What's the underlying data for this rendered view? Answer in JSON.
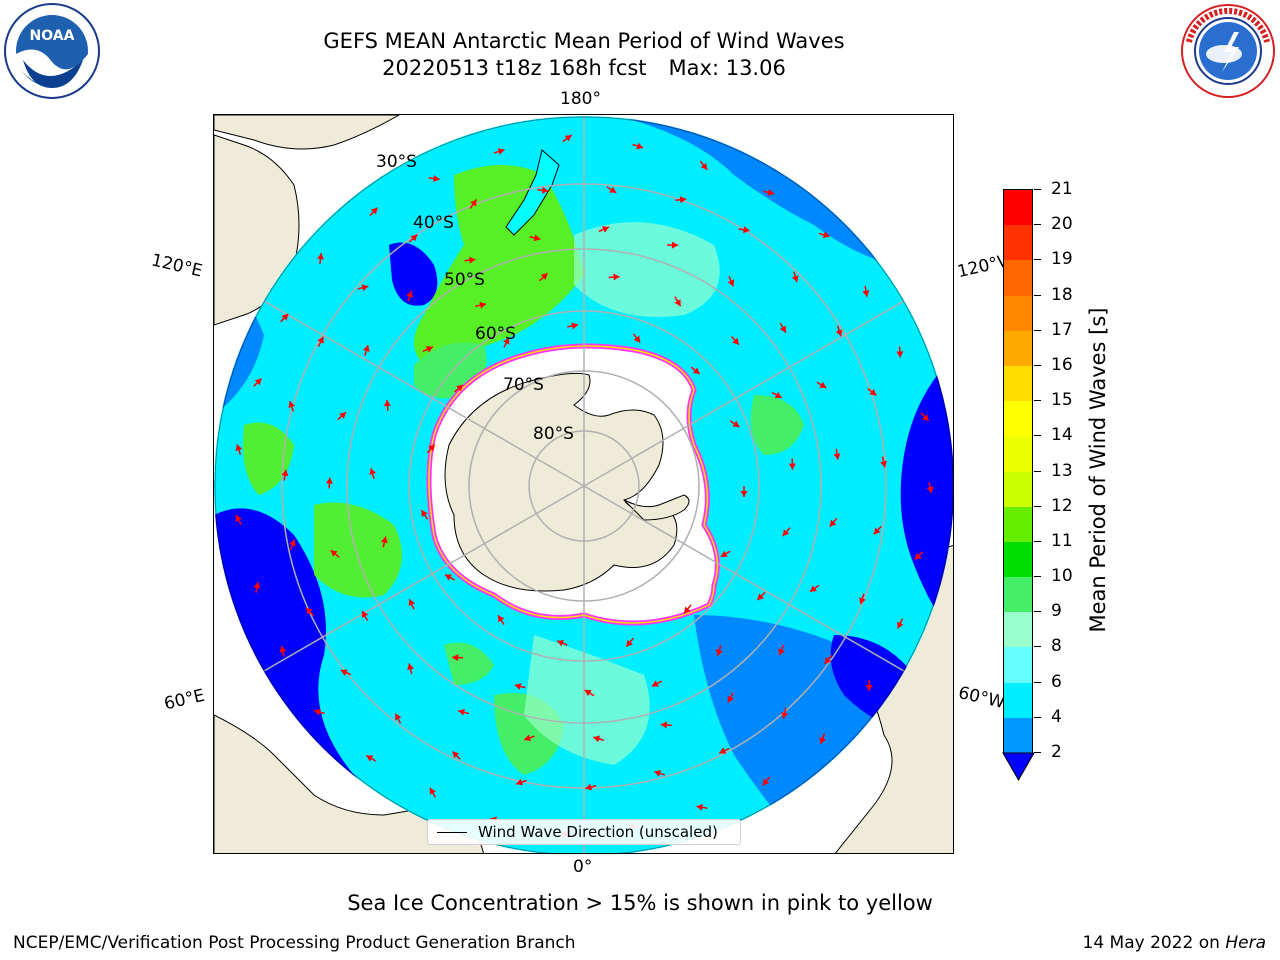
{
  "title": {
    "line1": "GEFS MEAN Antarctic Mean Period of Wind Waves",
    "line2_date": "20220513 t18z 168h fcst",
    "line2_max": "Max: 13.06"
  },
  "logos": {
    "left": {
      "icon": "noaa-logo",
      "text": "NOAA"
    },
    "right": {
      "icon": "nws-logo",
      "text": "NATIONAL WEATHER SERVICE"
    }
  },
  "map": {
    "projection": "south-polar-stereographic",
    "lon_labels": {
      "top": "180°",
      "bottom": "0°",
      "left_upper": "120°E",
      "left_lower": "60°E",
      "right_upper": "120°W",
      "right_lower": "60°W"
    },
    "lat_labels": [
      "30°S",
      "40°S",
      "50°S",
      "60°S",
      "70°S",
      "80°S"
    ],
    "legend": "Wind Wave Direction (unscaled)",
    "colors": {
      "land": "#eeebd8",
      "ice_edge": "#ff33ff",
      "arrows": "#ff0000",
      "grid": "#b0b0b0"
    }
  },
  "colorbar": {
    "label": "Mean Period of Wind Waves [s]",
    "ticks": [
      "21",
      "20",
      "19",
      "18",
      "17",
      "16",
      "15",
      "14",
      "13",
      "12",
      "11",
      "10",
      "9",
      "8",
      "6",
      "4",
      "2"
    ],
    "colors": [
      "#ff0000",
      "#ff3300",
      "#ff6600",
      "#ff8800",
      "#ffaa00",
      "#ffdd00",
      "#ffff00",
      "#eeff00",
      "#ccff00",
      "#66ee00",
      "#00dd00",
      "#44ee66",
      "#99ffcc",
      "#66ffff",
      "#00eeff",
      "#0099ff",
      "#0000ff"
    ]
  },
  "note": "Sea Ice Concentration > 15% is shown in pink to yellow",
  "footer": {
    "left": "NCEP/EMC/Verification Post Processing Product Generation Branch",
    "right_date": "14 May 2022 on",
    "right_host": "Hera"
  }
}
